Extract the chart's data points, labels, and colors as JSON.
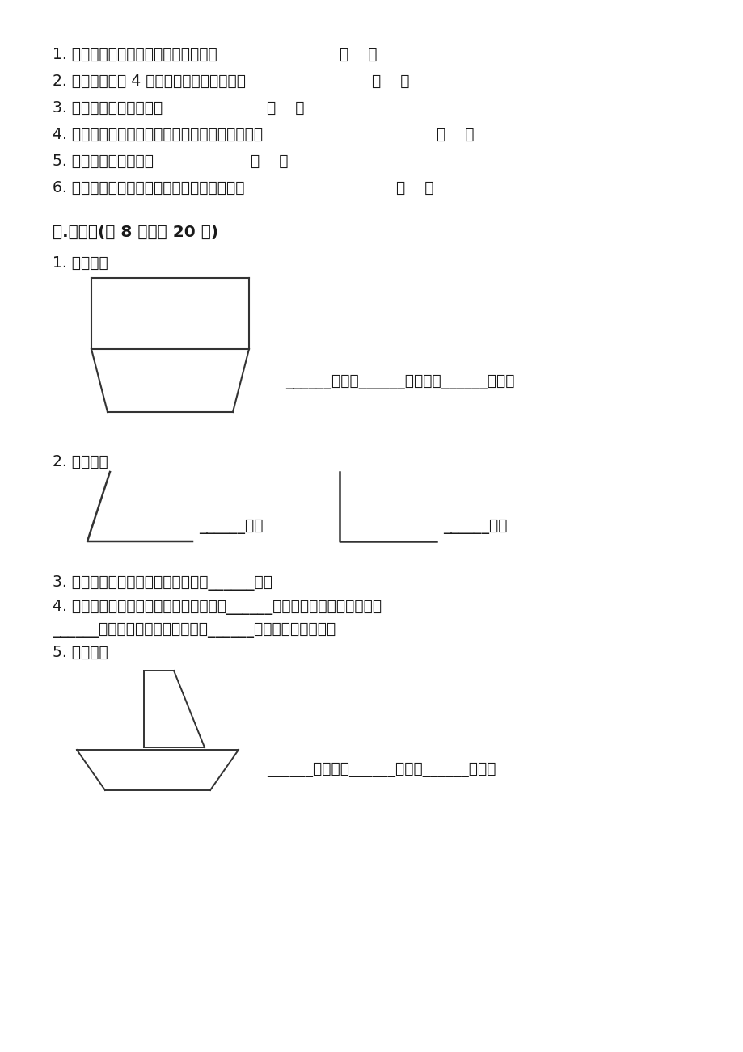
{
  "bg_color": "#ffffff",
  "text_color": "#1a1a1a",
  "line_color": "#333333",
  "lines_raw": [
    [
      "1. 一个角的两边越长，这个角就越大。",
      420,
      "（    ）"
    ],
    [
      "2. 课本的封面有 4 个角，四个角都是直角。",
      460,
      "（    ）"
    ],
    [
      "3. 直角比所有的角都大。",
      330,
      "（    ）"
    ],
    [
      "4. 数学书封面上的直角和黑板面上的直角一样大。",
      540,
      "（    ）"
    ],
    [
      "5. 魉角一定比直角大。",
      310,
      "（    ）"
    ],
    [
      "6. 数学书封面上的直角比黑板面上的直角小。",
      490,
      "（    ）"
    ]
  ],
  "section2_title": "三.填空题(共 8 题，共 20 分)",
  "q1_label": "1. 数一数。",
  "q1_answer": "______锐角，______个直角，______魉角。",
  "q2_label": "2. 填一填。",
  "q2_answer1": "______角；",
  "q2_answer2": "______角。",
  "q3_label": "3. 一个锐角和一个直角可以组成一个______角。",
  "q4_label": "4. 将一个圆形的纸对折一次，得到的角是______角；对折两次，得到的角是",
  "q4_label2": "______角；对折三次，得到的角是______角。（圆心为顶点）",
  "q5_label": "5. 数一数。",
  "q5_answer": "______个直角，______锐角，______魉角。"
}
